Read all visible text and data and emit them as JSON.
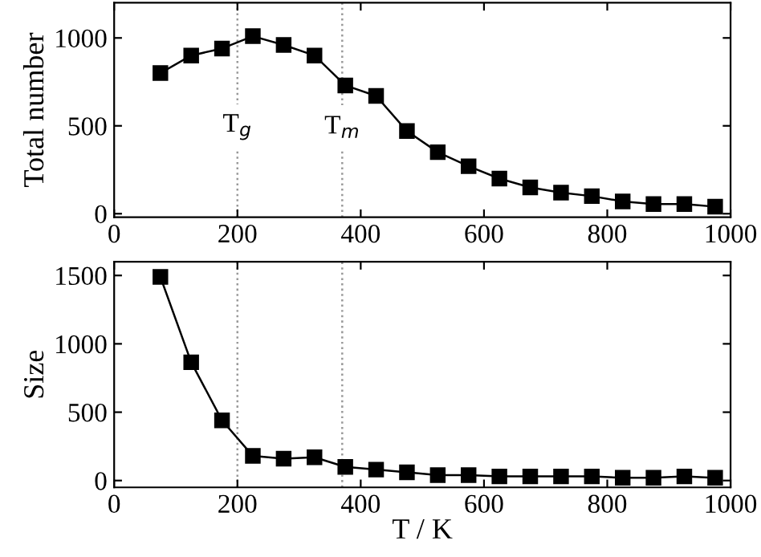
{
  "chart_data": [
    {
      "type": "line",
      "ylabel": "Total number",
      "x": [
        75,
        125,
        175,
        225,
        275,
        325,
        375,
        425,
        475,
        525,
        575,
        625,
        675,
        725,
        775,
        825,
        875,
        925,
        975
      ],
      "series": [
        {
          "color": "#000000",
          "values": [
            800,
            900,
            940,
            1010,
            960,
            900,
            730,
            670,
            470,
            350,
            270,
            200,
            150,
            120,
            100,
            70,
            55,
            55,
            40
          ]
        }
      ],
      "xlim": [
        0,
        1000
      ],
      "xticks": [
        0,
        200,
        400,
        600,
        800,
        1000
      ],
      "ylim": [
        -20,
        1200
      ],
      "yticks": [
        0,
        500,
        1000
      ],
      "ref_lines": [
        {
          "axis": "x",
          "value": 200,
          "label": "T$_{g}$",
          "color": "#999999",
          "line_style": "dotted"
        },
        {
          "axis": "x",
          "value": 370,
          "label": "T$_{m}$",
          "color": "#999999",
          "line_style": "dotted"
        }
      ],
      "marker": "square",
      "line_style": "solid",
      "grid": false,
      "legend": false
    },
    {
      "type": "line",
      "ylabel": "Size",
      "xlabel": "T / K",
      "x": [
        75,
        125,
        175,
        225,
        275,
        325,
        375,
        425,
        475,
        525,
        575,
        625,
        675,
        725,
        775,
        825,
        875,
        925,
        975
      ],
      "series": [
        {
          "color": "#000000",
          "values": [
            1490,
            865,
            440,
            180,
            160,
            170,
            100,
            80,
            60,
            40,
            40,
            30,
            30,
            30,
            30,
            20,
            20,
            30,
            20
          ]
        }
      ],
      "xlim": [
        0,
        1000
      ],
      "xticks": [
        0,
        200,
        400,
        600,
        800,
        1000
      ],
      "ylim": [
        -50,
        1600
      ],
      "yticks": [
        0,
        500,
        1000,
        1500
      ],
      "ref_lines": [
        {
          "axis": "x",
          "value": 200,
          "color": "#999999",
          "line_style": "dotted"
        },
        {
          "axis": "x",
          "value": 370,
          "color": "#999999",
          "line_style": "dotted"
        }
      ],
      "marker": "square",
      "line_style": "solid",
      "grid": false,
      "legend": false
    }
  ]
}
